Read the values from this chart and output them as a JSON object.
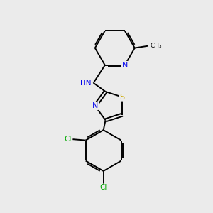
{
  "background_color": "#ebebeb",
  "bond_color": "#000000",
  "atom_colors": {
    "N": "#0000ee",
    "S": "#ccaa00",
    "Cl": "#00aa00",
    "C": "#000000",
    "H": "#555555"
  },
  "figsize": [
    3.0,
    3.0
  ],
  "dpi": 100
}
